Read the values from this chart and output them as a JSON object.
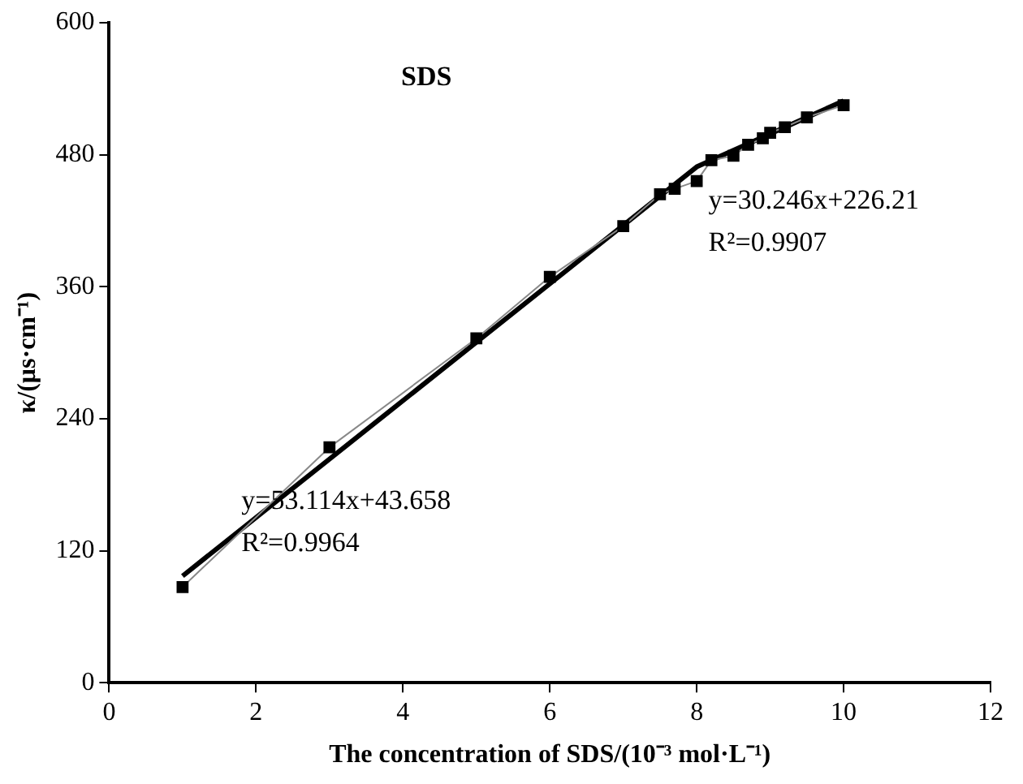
{
  "chart_data": {
    "type": "line",
    "title": "SDS",
    "xlabel": "The concentration of SDS/(10⁻³ mol·L⁻¹)",
    "ylabel": "κ/(μs·cm⁻¹)",
    "xlim": [
      0,
      12
    ],
    "xticks": [
      0,
      2,
      4,
      6,
      8,
      10,
      12
    ],
    "ylim": [
      0,
      600
    ],
    "yticks": [
      0,
      120,
      240,
      360,
      480,
      600
    ],
    "grid": false,
    "legend": false,
    "marker": "square",
    "series": [
      {
        "color": "#000000",
        "x": [
          1,
          3,
          5,
          6,
          7,
          7.5,
          7.7,
          8,
          8.2,
          8.5,
          8.7,
          8.9,
          9,
          9.2,
          9.5,
          10
        ],
        "values": [
          87,
          214,
          313,
          369,
          415,
          444,
          449,
          456,
          475,
          479,
          489,
          495,
          500,
          505,
          514,
          525
        ]
      },
      {
        "type": "line",
        "marker": "none",
        "color": "#000000",
        "x": [
          1,
          8,
          10
        ],
        "values": [
          97,
          469,
          529
        ]
      }
    ],
    "annotations": [
      "y=30.246x+226.21",
      "R²=0.9907",
      "y=53.114x+43.658",
      "R²=0.9964"
    ]
  }
}
